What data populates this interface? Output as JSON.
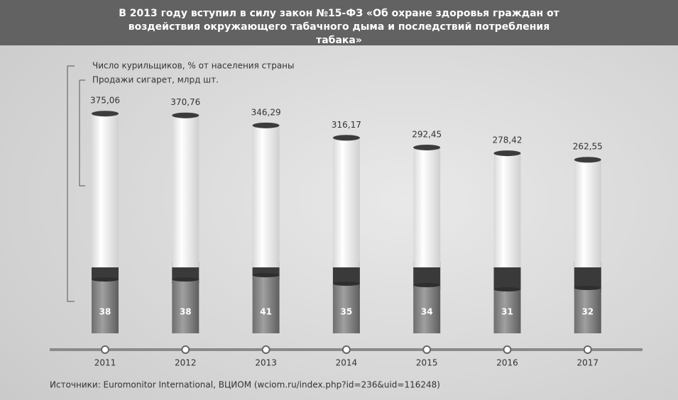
{
  "chart_data": {
    "type": "bar",
    "title": "В 2013 году вступил в силу закон №15-ФЗ «Об охране здоровья граждан от воздействия окружающего табачного дыма и последствий потребления табака»",
    "categories": [
      "2011",
      "2012",
      "2013",
      "2014",
      "2015",
      "2016",
      "2017"
    ],
    "series": [
      {
        "name": "Число курильщиков, % от населения страны",
        "color": "#8a8a8a",
        "values": [
          38,
          38,
          41,
          35,
          34,
          31,
          32
        ]
      },
      {
        "name": "Продажи сигарет, млрд шт.",
        "color": "#ffffff",
        "values": [
          375.06,
          370.76,
          346.29,
          316.17,
          292.45,
          278.42,
          262.55
        ],
        "value_labels": [
          "375,06",
          "370,76",
          "346,29",
          "316,17",
          "292,45",
          "278,42",
          "262,55"
        ]
      }
    ],
    "source": "Источники: Euromonitor International, ВЦИОМ (wciom.ru/index.php?id=236&uid=116248)"
  }
}
